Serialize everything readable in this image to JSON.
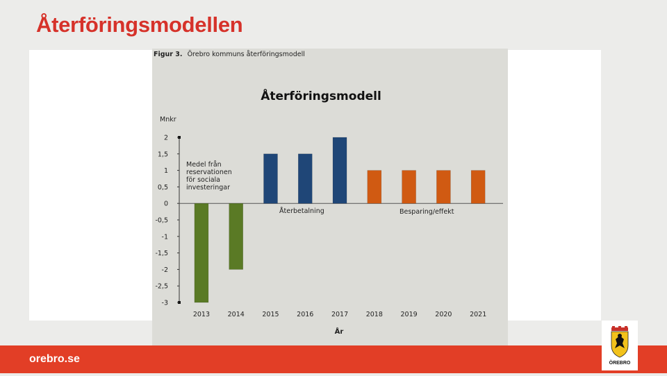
{
  "slide": {
    "title": "Återföringsmodellen"
  },
  "figure": {
    "label": "Figur 3.",
    "caption": "Örebro kommuns återföringsmodell"
  },
  "footer": {
    "site": "orebro.se"
  },
  "logo": {
    "text": "ÖREBRO",
    "icon": "coat-of-arms-icon"
  },
  "colors": {
    "accent": "#e23e26",
    "title": "#d6322a",
    "investment": "#5a7a25",
    "repayment": "#1f4677",
    "savings": "#d05a12"
  },
  "chart_data": {
    "type": "bar",
    "title": "Återföringsmodell",
    "ylabel": "Mnkr",
    "xlabel": "År",
    "ylim": [
      -3,
      2
    ],
    "yticks": [
      "2",
      "1,5",
      "1",
      "0,5",
      "0",
      "-0,5",
      "-1",
      "-1,5",
      "-2",
      "-2,5",
      "-3"
    ],
    "categories": [
      "2013",
      "2014",
      "2015",
      "2016",
      "2017",
      "2018",
      "2019",
      "2020",
      "2021"
    ],
    "values": [
      -3,
      -2,
      1.5,
      1.5,
      2,
      1,
      1,
      1,
      1
    ],
    "bar_colors": [
      "#5a7a25",
      "#5a7a25",
      "#1f4677",
      "#1f4677",
      "#1f4677",
      "#d05a12",
      "#d05a12",
      "#d05a12",
      "#d05a12"
    ],
    "annotations": [
      {
        "lines": [
          "Medel från",
          "reservationen",
          "för sociala",
          "investeringar"
        ]
      },
      {
        "lines": [
          "Återbetalning"
        ]
      },
      {
        "lines": [
          "Besparing/effekt"
        ]
      }
    ],
    "grid": false
  }
}
